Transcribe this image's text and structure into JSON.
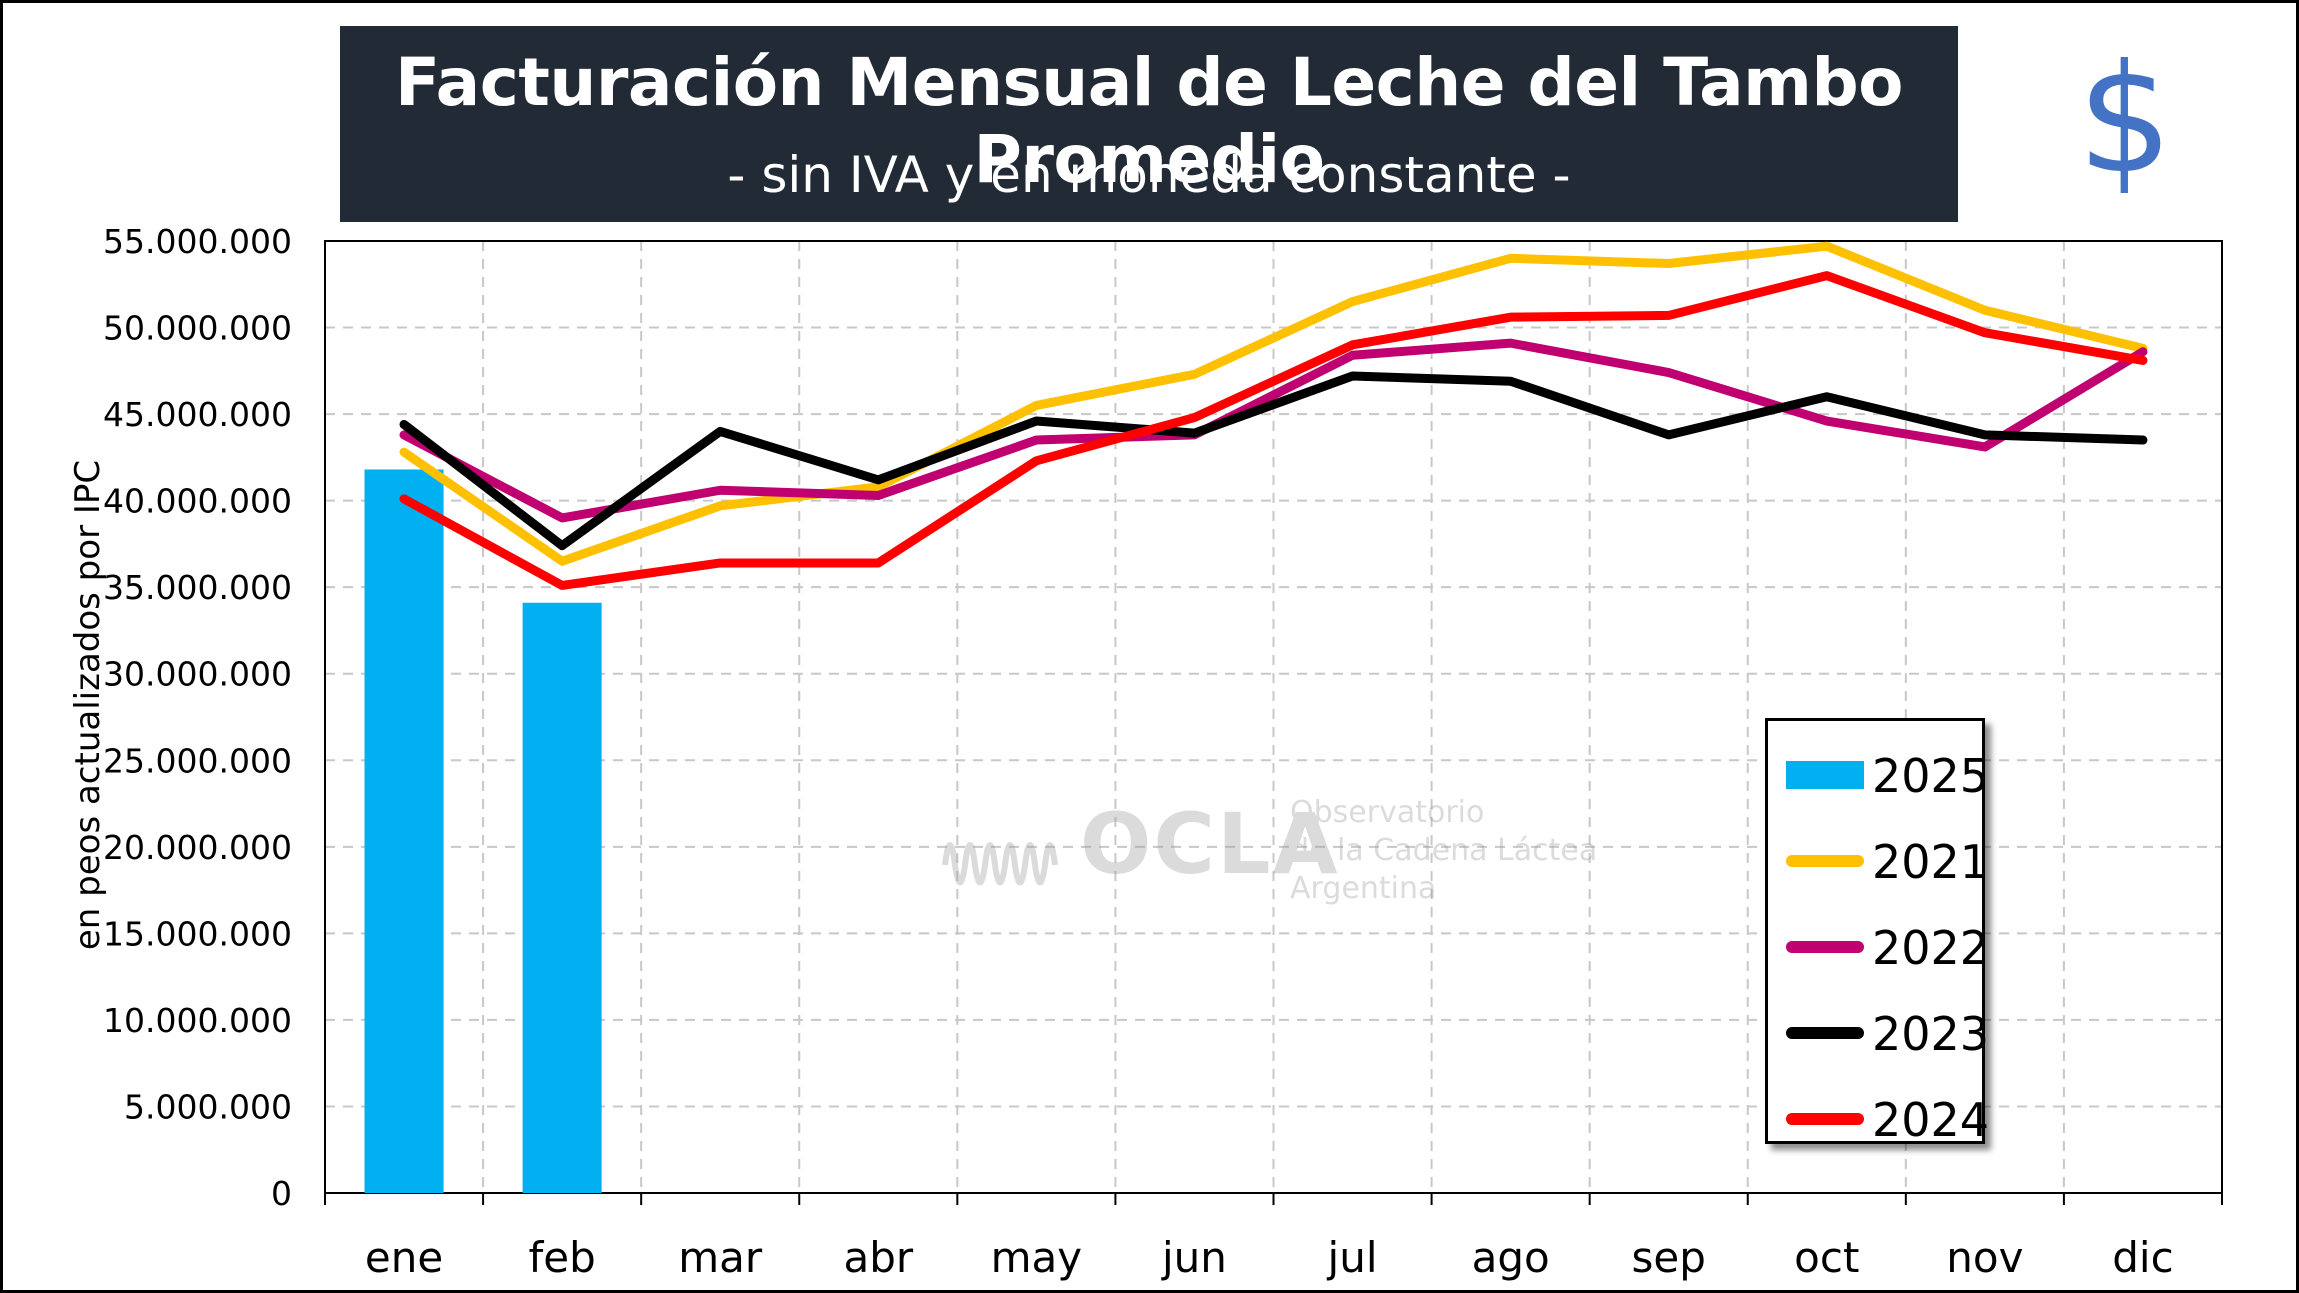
{
  "title": {
    "main": "Facturación Mensual de Leche del Tambo Promedio",
    "sub": "- sin IVA y en moneda constante -"
  },
  "dollar_symbol": "$",
  "watermark": {
    "logo": "OCLA",
    "line1": "Observatorio",
    "line2": "de la Cadena Láctea",
    "line3": "Argentina"
  },
  "colors": {
    "2025": "#00b0f0",
    "2021": "#ffc000",
    "2022": "#c00070",
    "2023": "#000000",
    "2024": "#ff0000",
    "title_bg": "#222a35",
    "dollar": "#4472c4"
  },
  "chart_data": {
    "type": "bar+line",
    "title": "Facturación Mensual de Leche del Tambo Promedio",
    "subtitle": "- sin IVA y en moneda constante -",
    "ylabel": "en peos actualizados por IPC",
    "xlabel": "",
    "ylim": [
      0,
      55000000
    ],
    "yticks": [
      0,
      5000000,
      10000000,
      15000000,
      20000000,
      25000000,
      30000000,
      35000000,
      40000000,
      45000000,
      50000000,
      55000000
    ],
    "ytick_labels": [
      "0",
      "5.000.000",
      "10.000.000",
      "15.000.000",
      "20.000.000",
      "25.000.000",
      "30.000.000",
      "35.000.000",
      "40.000.000",
      "45.000.000",
      "50.000.000",
      "55.000.000"
    ],
    "categories": [
      "ene",
      "feb",
      "mar",
      "abr",
      "may",
      "jun",
      "jul",
      "ago",
      "sep",
      "oct",
      "nov",
      "dic"
    ],
    "grid": true,
    "legend_position": "bottom-right",
    "bars": [
      {
        "name": "2025",
        "values": [
          41800000,
          34100000
        ]
      }
    ],
    "series": [
      {
        "name": "2021",
        "values": [
          42800000,
          36500000,
          39700000,
          40800000,
          45500000,
          47300000,
          51500000,
          54000000,
          53700000,
          54700000,
          51000000,
          48800000
        ]
      },
      {
        "name": "2022",
        "values": [
          43800000,
          39000000,
          40600000,
          40300000,
          43500000,
          43800000,
          48400000,
          49100000,
          47400000,
          44600000,
          43100000,
          48600000
        ]
      },
      {
        "name": "2023",
        "values": [
          44400000,
          37400000,
          44000000,
          41200000,
          44600000,
          43900000,
          47200000,
          46900000,
          43800000,
          46000000,
          43800000,
          43500000
        ]
      },
      {
        "name": "2024",
        "values": [
          40100000,
          35100000,
          36400000,
          36400000,
          42300000,
          44800000,
          49000000,
          50600000,
          50700000,
          53000000,
          49700000,
          48100000
        ]
      }
    ]
  }
}
